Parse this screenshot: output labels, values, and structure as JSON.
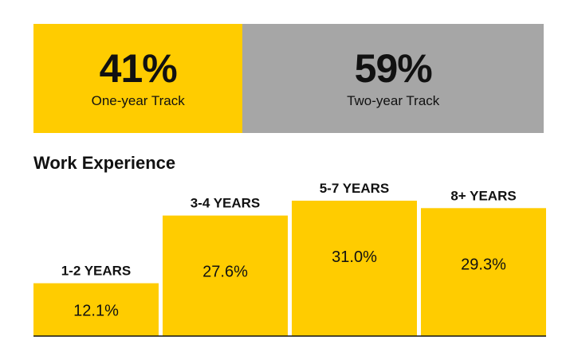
{
  "tracks": [
    {
      "percent": "41%",
      "label": "One-year Track",
      "share": 0.41,
      "color": "#ffcc00"
    },
    {
      "percent": "59%",
      "label": "Two-year Track",
      "share": 0.59,
      "color": "#a6a6a6"
    }
  ],
  "section_title": "Work Experience",
  "chart_data": {
    "type": "bar",
    "title": "Work Experience",
    "categories": [
      "1-2 YEARS",
      "3-4 YEARS",
      "5-7 YEARS",
      "8+ YEARS"
    ],
    "values": [
      12.1,
      27.6,
      31.0,
      29.3
    ],
    "value_labels": [
      "12.1%",
      "27.6%",
      "31.0%",
      "29.3%"
    ],
    "ylim": [
      0,
      31
    ],
    "grid": false,
    "color": "#ffcc00"
  }
}
